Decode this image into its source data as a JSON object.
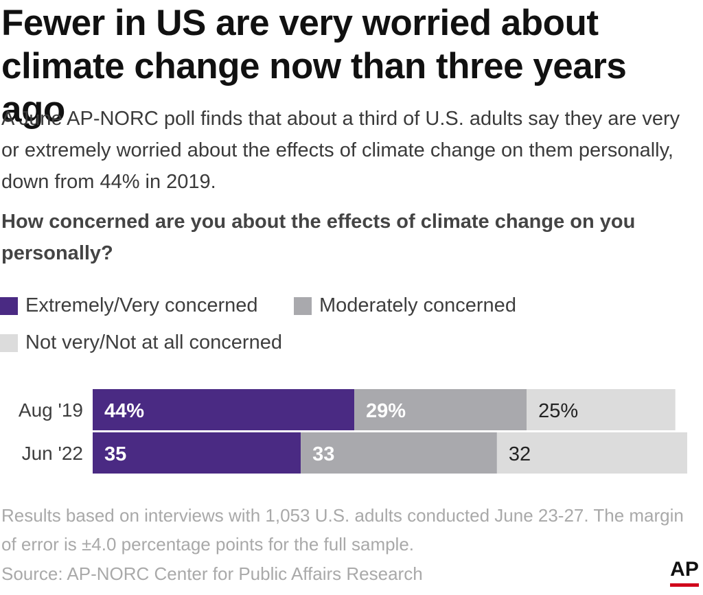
{
  "header": {
    "title": "Fewer in US are very worried about climate change now than three years ago",
    "subtitle": "A June AP-NORC poll finds that about a third of U.S. adults say they are very or extremely worried about the effects of climate change on them personally, down from 44% in 2019.",
    "question": "How concerned are you about the effects of climate change on you personally?"
  },
  "legend": [
    {
      "label": "Extremely/Very concerned",
      "color": "#4a2a83"
    },
    {
      "label": "Moderately concerned",
      "color": "#a9a9ad"
    },
    {
      "label": "Not very/Not at all concerned",
      "color": "#dcdcdc"
    }
  ],
  "chart_data": {
    "type": "bar",
    "orientation": "horizontal",
    "stacked": true,
    "categories": [
      "Aug '19",
      "Jun '22"
    ],
    "series": [
      {
        "name": "Extremely/Very concerned",
        "values": [
          44,
          35
        ],
        "labels": [
          "44%",
          "35"
        ],
        "color": "#4a2a83",
        "label_color": "#ffffff"
      },
      {
        "name": "Moderately concerned",
        "values": [
          29,
          33
        ],
        "labels": [
          "29%",
          "33"
        ],
        "color": "#a9a9ad",
        "label_color": "#ffffff"
      },
      {
        "name": "Not very/Not at all concerned",
        "values": [
          25,
          32
        ],
        "labels": [
          "25%",
          "32"
        ],
        "color": "#dcdcdc",
        "label_color": "#222222"
      }
    ],
    "xlim": [
      0,
      100
    ],
    "grid": false,
    "legend_position": "top-left"
  },
  "footer": {
    "note": "Results based on interviews with 1,053 U.S. adults conducted June 23-27. The margin of error is ±4.0 percentage points for the full sample.",
    "source": "Source: AP-NORC Center for Public Affairs Research",
    "logo_text": "AP"
  }
}
